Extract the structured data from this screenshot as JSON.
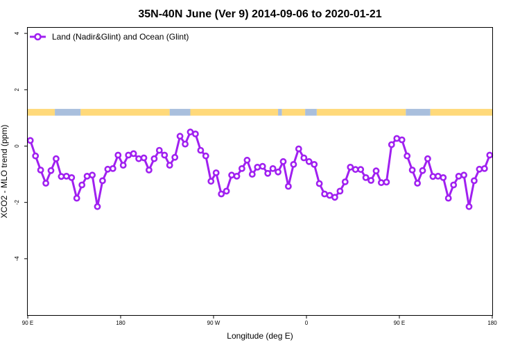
{
  "chart_data": {
    "type": "line",
    "title": "35N-40N June (Ver 9)   2014-09-06 to 2020-01-21",
    "xlabel": "Longitude (deg E)",
    "ylabel": "XCO2 - MLO trend (ppm)",
    "xlim": [
      90,
      450
    ],
    "ylim": [
      -6,
      4.2
    ],
    "x_ticks": [
      {
        "value": 90,
        "label": "90 E"
      },
      {
        "value": 162,
        "label": "180"
      },
      {
        "value": 234,
        "label": "90 W"
      },
      {
        "value": 306,
        "label": "0"
      },
      {
        "value": 378,
        "label": "90 E"
      },
      {
        "value": 450,
        "label": "180"
      }
    ],
    "y_ticks": [
      {
        "value": 4,
        "label": "4"
      },
      {
        "value": 2,
        "label": "2"
      },
      {
        "value": 0,
        "label": "0"
      },
      {
        "value": -2,
        "label": "-2"
      },
      {
        "value": -4,
        "label": "-4"
      }
    ],
    "grid": false,
    "legend_position": "top-left",
    "series": [
      {
        "name": "Land (Nadir&Glint) and Ocean (Glint)",
        "color": "#a020f0",
        "x": [
          92,
          96,
          100,
          104,
          108,
          112,
          116,
          120,
          124,
          128,
          132,
          136,
          140,
          144,
          148,
          152,
          156,
          160,
          164,
          168,
          172,
          176,
          180,
          184,
          188,
          192,
          196,
          200,
          204,
          208,
          212,
          216,
          220,
          224,
          228,
          232,
          236,
          240,
          244,
          248,
          252,
          256,
          260,
          264,
          268,
          272,
          276,
          280,
          284,
          288,
          292,
          296,
          300,
          304,
          308,
          312,
          316,
          320,
          324,
          328,
          332,
          336,
          340,
          344,
          348,
          352,
          356,
          360,
          364,
          368,
          372,
          376,
          380,
          384,
          388,
          392,
          396,
          400,
          404,
          408,
          412,
          416,
          420,
          424,
          428,
          432,
          436,
          440,
          444,
          448
        ],
        "y": [
          0.2,
          -0.35,
          -0.85,
          -1.32,
          -0.87,
          -0.45,
          -1.08,
          -1.07,
          -1.12,
          -1.85,
          -1.38,
          -1.07,
          -1.03,
          -2.15,
          -1.23,
          -0.82,
          -0.8,
          -0.32,
          -0.68,
          -0.32,
          -0.27,
          -0.45,
          -0.42,
          -0.85,
          -0.45,
          -0.15,
          -0.32,
          -0.68,
          -0.4,
          0.35,
          0.07,
          0.5,
          0.43,
          -0.15,
          -0.35,
          -1.25,
          -0.95,
          -1.7,
          -1.6,
          -1.03,
          -1.07,
          -0.8,
          -0.5,
          -1.0,
          -0.75,
          -0.72,
          -0.97,
          -0.8,
          -0.92,
          -0.55,
          -1.43,
          -0.65,
          -0.1,
          -0.42,
          -0.55,
          -0.65,
          -1.33,
          -1.7,
          -1.75,
          -1.82,
          -1.6,
          -1.27,
          -0.75,
          -0.83,
          -0.83,
          -1.12,
          -1.22,
          -0.88,
          -1.3,
          -1.28,
          0.05,
          0.27,
          0.22,
          -0.35,
          -0.85,
          -1.32,
          -0.87,
          -0.45,
          -1.08,
          -1.07,
          -1.12,
          -1.85,
          -1.38,
          -1.07,
          -1.03,
          -2.15,
          -1.23,
          -0.82,
          -0.8,
          -0.32
        ]
      }
    ],
    "land_sea_strip": {
      "y_range": [
        1.08,
        1.32
      ],
      "land_color": "#ffd97a",
      "ocean_color": "#a9bfdd",
      "segments": [
        {
          "type": "land",
          "x": [
            90,
            111
          ]
        },
        {
          "type": "ocean",
          "x": [
            111,
            131
          ]
        },
        {
          "type": "land",
          "x": [
            131,
            200
          ]
        },
        {
          "type": "ocean",
          "x": [
            200,
            216
          ]
        },
        {
          "type": "land",
          "x": [
            216,
            284
          ]
        },
        {
          "type": "ocean",
          "x": [
            284,
            287
          ]
        },
        {
          "type": "land",
          "x": [
            287,
            305
          ]
        },
        {
          "type": "ocean",
          "x": [
            305,
            314
          ]
        },
        {
          "type": "land",
          "x": [
            314,
            383
          ]
        },
        {
          "type": "ocean",
          "x": [
            383,
            402
          ]
        },
        {
          "type": "land",
          "x": [
            402,
            450
          ]
        }
      ]
    }
  }
}
